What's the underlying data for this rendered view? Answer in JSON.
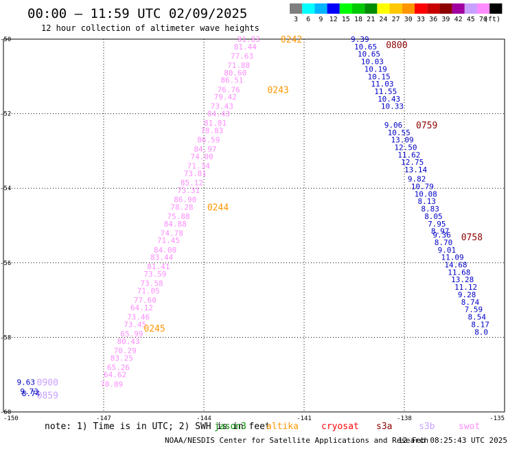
{
  "header": {
    "title": "00:00 – 11:59 UTC 02/09/2025",
    "subtitle": "12 hour collection of altimeter wave heights",
    "legend_unit": "(ft)",
    "legend_bins": [
      {
        "label": "3",
        "color": "#7f7f7f"
      },
      {
        "label": "6",
        "color": "#00ffff"
      },
      {
        "label": "9",
        "color": "#00b4ff"
      },
      {
        "label": "12",
        "color": "#0000ff"
      },
      {
        "label": "15",
        "color": "#00ff00"
      },
      {
        "label": "18",
        "color": "#00c800"
      },
      {
        "label": "21",
        "color": "#008c00"
      },
      {
        "label": "24",
        "color": "#ffff00"
      },
      {
        "label": "27",
        "color": "#ffc800"
      },
      {
        "label": "30",
        "color": "#ff9600"
      },
      {
        "label": "33",
        "color": "#ff0000"
      },
      {
        "label": "36",
        "color": "#c80000"
      },
      {
        "label": "39",
        "color": "#8c0000"
      },
      {
        "label": "42",
        "color": "#a000a0"
      },
      {
        "label": "45",
        "color": "#c8a0ff"
      },
      {
        "label": "70",
        "color": "#ff8cff"
      },
      {
        "label": "",
        "color": "#000000"
      }
    ]
  },
  "footer": {
    "note": "note: 1) Time is in UTC; 2) SWH is in feet",
    "credit": "NOAA/NESDIS Center for Satellite Applications and Research",
    "timestamp": "12 Feb 08:25:43 UTC 2025",
    "satellites": [
      {
        "name": "jason3",
        "color": "#008c00"
      },
      {
        "name": "altika",
        "color": "#ff9600"
      },
      {
        "name": "cryosat",
        "color": "#ff0000"
      },
      {
        "name": "s3a",
        "color": "#8c0000"
      },
      {
        "name": "s3b",
        "color": "#c8a0ff"
      },
      {
        "name": "swot",
        "color": "#ff8cff"
      }
    ]
  },
  "chart_data": {
    "type": "scatter",
    "xlim": [
      -150,
      -135
    ],
    "ylim": [
      -60,
      -50
    ],
    "x_ticks": [
      "-150",
      "-147",
      "-144",
      "-141",
      "-138",
      "-135"
    ],
    "y_ticks": [
      "-50",
      "-52",
      "-54",
      "-56",
      "-58",
      "-60"
    ],
    "grid": true,
    "tracks": [
      {
        "name": "swot",
        "color": "#ff8cff",
        "points": [
          {
            "lon": -143.0,
            "lat": -50.0,
            "text": "81.83"
          },
          {
            "lon": -143.1,
            "lat": -50.2,
            "text": "81.44"
          },
          {
            "lon": -143.2,
            "lat": -50.45,
            "text": "77.63"
          },
          {
            "lon": -143.3,
            "lat": -50.7,
            "text": "71.88"
          },
          {
            "lon": -143.4,
            "lat": -50.9,
            "text": "80.60"
          },
          {
            "lon": -143.5,
            "lat": -51.1,
            "text": "86.51"
          },
          {
            "lon": -143.6,
            "lat": -51.35,
            "text": "76.76"
          },
          {
            "lon": -143.7,
            "lat": -51.55,
            "text": "79.42"
          },
          {
            "lon": -143.8,
            "lat": -51.8,
            "text": "73.43"
          },
          {
            "lon": -143.9,
            "lat": -52.0,
            "text": "84.43"
          },
          {
            "lon": -144.0,
            "lat": -52.25,
            "text": "81.81"
          },
          {
            "lon": -144.1,
            "lat": -52.45,
            "text": "78.83"
          },
          {
            "lon": -144.2,
            "lat": -52.7,
            "text": "86.59"
          },
          {
            "lon": -144.3,
            "lat": -52.95,
            "text": "84.97"
          },
          {
            "lon": -144.4,
            "lat": -53.15,
            "text": "74.00"
          },
          {
            "lon": -144.5,
            "lat": -53.4,
            "text": "71.34"
          },
          {
            "lon": -144.6,
            "lat": -53.6,
            "text": "73.81"
          },
          {
            "lon": -144.7,
            "lat": -53.85,
            "text": "85.12"
          },
          {
            "lon": -144.8,
            "lat": -54.05,
            "text": "73.31"
          },
          {
            "lon": -144.9,
            "lat": -54.3,
            "text": "86.90"
          },
          {
            "lon": -145.0,
            "lat": -54.5,
            "text": "78.28"
          },
          {
            "lon": -145.1,
            "lat": -54.75,
            "text": "75.88"
          },
          {
            "lon": -145.2,
            "lat": -54.95,
            "text": "84.88"
          },
          {
            "lon": -145.3,
            "lat": -55.2,
            "text": "74.78"
          },
          {
            "lon": -145.4,
            "lat": -55.4,
            "text": "71.45"
          },
          {
            "lon": -145.5,
            "lat": -55.65,
            "text": "84.00"
          },
          {
            "lon": -145.6,
            "lat": -55.85,
            "text": "83.44"
          },
          {
            "lon": -145.7,
            "lat": -56.1,
            "text": "81.41"
          },
          {
            "lon": -145.8,
            "lat": -56.3,
            "text": "73.59"
          },
          {
            "lon": -145.9,
            "lat": -56.55,
            "text": "73.58"
          },
          {
            "lon": -146.0,
            "lat": -56.75,
            "text": "71.05"
          },
          {
            "lon": -146.1,
            "lat": -57.0,
            "text": "77.60"
          },
          {
            "lon": -146.2,
            "lat": -57.2,
            "text": "64.12"
          },
          {
            "lon": -146.3,
            "lat": -57.45,
            "text": "73.46"
          },
          {
            "lon": -146.4,
            "lat": -57.65,
            "text": "73.45"
          },
          {
            "lon": -146.5,
            "lat": -57.9,
            "text": "65.99"
          },
          {
            "lon": -146.6,
            "lat": -58.1,
            "text": "80.43"
          },
          {
            "lon": -146.7,
            "lat": -58.35,
            "text": "70.29"
          },
          {
            "lon": -146.8,
            "lat": -58.55,
            "text": "83.25"
          },
          {
            "lon": -146.9,
            "lat": -58.8,
            "text": "65.26"
          },
          {
            "lon": -147.0,
            "lat": -59.0,
            "text": "64.62"
          },
          {
            "lon": -147.1,
            "lat": -59.25,
            "text": "70.89"
          }
        ]
      },
      {
        "name": "s3a",
        "color": "#0000c8",
        "points": [
          {
            "lon": -139.6,
            "lat": -50.0,
            "text": "9.39"
          },
          {
            "lon": -139.5,
            "lat": -50.2,
            "text": "10.65"
          },
          {
            "lon": -139.4,
            "lat": -50.4,
            "text": "10.65"
          },
          {
            "lon": -139.3,
            "lat": -50.6,
            "text": "10.03"
          },
          {
            "lon": -139.2,
            "lat": -50.8,
            "text": "10.19"
          },
          {
            "lon": -139.1,
            "lat": -51.0,
            "text": "10.15"
          },
          {
            "lon": -139.0,
            "lat": -51.2,
            "text": "11.03"
          },
          {
            "lon": -138.9,
            "lat": -51.4,
            "text": "11.55"
          },
          {
            "lon": -138.8,
            "lat": -51.6,
            "text": "10.43"
          },
          {
            "lon": -138.7,
            "lat": -51.8,
            "text": "10.33"
          },
          {
            "lon": -138.6,
            "lat": -52.3,
            "text": "9.06"
          },
          {
            "lon": -138.5,
            "lat": -52.5,
            "text": "10.55"
          },
          {
            "lon": -138.4,
            "lat": -52.7,
            "text": "13.09"
          },
          {
            "lon": -138.3,
            "lat": -52.9,
            "text": "12.50"
          },
          {
            "lon": -138.2,
            "lat": -53.1,
            "text": "11.62"
          },
          {
            "lon": -138.1,
            "lat": -53.3,
            "text": "12.75"
          },
          {
            "lon": -138.0,
            "lat": -53.5,
            "text": "13.14"
          },
          {
            "lon": -137.9,
            "lat": -53.75,
            "text": "9.82"
          },
          {
            "lon": -137.8,
            "lat": -53.95,
            "text": "10.79"
          },
          {
            "lon": -137.7,
            "lat": -54.15,
            "text": "10.08"
          },
          {
            "lon": -137.6,
            "lat": -54.35,
            "text": "8.13"
          },
          {
            "lon": -137.5,
            "lat": -54.55,
            "text": "8.83"
          },
          {
            "lon": -137.4,
            "lat": -54.75,
            "text": "8.05"
          },
          {
            "lon": -137.3,
            "lat": -54.95,
            "text": "7.95"
          },
          {
            "lon": -137.2,
            "lat": -55.15,
            "text": "8.97"
          },
          {
            "lon": -137.15,
            "lat": -55.25,
            "text": "9.36"
          },
          {
            "lon": -137.1,
            "lat": -55.45,
            "text": "8.70"
          },
          {
            "lon": -137.0,
            "lat": -55.65,
            "text": "9.01"
          },
          {
            "lon": -136.9,
            "lat": -55.85,
            "text": "11.09"
          },
          {
            "lon": -136.8,
            "lat": -56.05,
            "text": "14.68"
          },
          {
            "lon": -136.7,
            "lat": -56.25,
            "text": "11.68"
          },
          {
            "lon": -136.6,
            "lat": -56.45,
            "text": "13.28"
          },
          {
            "lon": -136.5,
            "lat": -56.65,
            "text": "11.12"
          },
          {
            "lon": -136.4,
            "lat": -56.85,
            "text": "9.28"
          },
          {
            "lon": -136.3,
            "lat": -57.05,
            "text": "8.74"
          },
          {
            "lon": -136.2,
            "lat": -57.25,
            "text": "7.59"
          },
          {
            "lon": -136.1,
            "lat": -57.45,
            "text": "8.54"
          },
          {
            "lon": -136.0,
            "lat": -57.65,
            "text": "8.17"
          },
          {
            "lon": -135.9,
            "lat": -57.85,
            "text": "8.0"
          }
        ]
      },
      {
        "name": "s3b",
        "color": "#0000c8",
        "points": [
          {
            "lon": -149.6,
            "lat": -59.2,
            "text": "9.63"
          },
          {
            "lon": -149.5,
            "lat": -59.45,
            "text": "9.73"
          },
          {
            "lon": -149.45,
            "lat": -59.5,
            "text": "8.74"
          }
        ]
      }
    ],
    "time_labels": [
      {
        "lon": -141.7,
        "lat": -50.0,
        "text": "0242",
        "color": "#ff9600"
      },
      {
        "lon": -142.1,
        "lat": -51.35,
        "text": "0243",
        "color": "#ff9600"
      },
      {
        "lon": -143.9,
        "lat": -54.5,
        "text": "0244",
        "color": "#ff9600"
      },
      {
        "lon": -145.8,
        "lat": -57.75,
        "text": "0245",
        "color": "#ff9600"
      },
      {
        "lon": -138.55,
        "lat": -50.15,
        "text": "0800",
        "color": "#8c0000"
      },
      {
        "lon": -137.65,
        "lat": -52.3,
        "text": "0759",
        "color": "#8c0000"
      },
      {
        "lon": -136.3,
        "lat": -55.3,
        "text": "0758",
        "color": "#8c0000"
      },
      {
        "lon": -149.0,
        "lat": -59.2,
        "text": "0900",
        "color": "#c8a0ff"
      },
      {
        "lon": -149.0,
        "lat": -59.55,
        "text": "0859",
        "color": "#c8a0ff"
      }
    ]
  }
}
